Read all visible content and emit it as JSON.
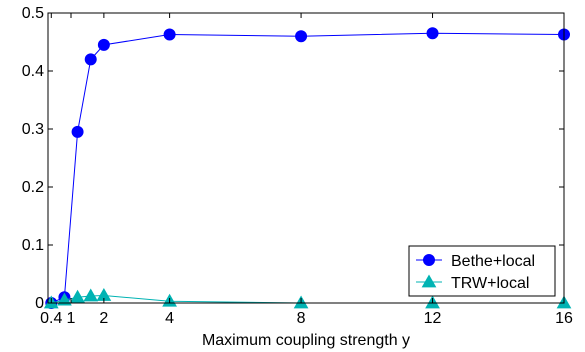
{
  "chart_data": {
    "type": "line",
    "title": "",
    "xlabel": "Maximum coupling strength y",
    "ylabel": "",
    "xlim": [
      0.3,
      16
    ],
    "ylim": [
      0,
      0.5
    ],
    "x_ticks": [
      0.4,
      1,
      2,
      4,
      8,
      12,
      16
    ],
    "x_tick_labels": [
      "0.4",
      "1",
      "2",
      "4",
      "8",
      "12",
      "16"
    ],
    "y_ticks": [
      0,
      0.1,
      0.2,
      0.3,
      0.4,
      0.5
    ],
    "y_tick_labels": [
      "0",
      "0.1",
      "0.2",
      "0.3",
      "0.4",
      "0.5"
    ],
    "grid": false,
    "legend_position": "bottom-right",
    "series": [
      {
        "name": "Bethe+local",
        "color": "#0000ff",
        "marker": "circle",
        "x": [
          0.4,
          0.8,
          1.2,
          1.6,
          2,
          4,
          8,
          12,
          16
        ],
        "y": [
          0.0,
          0.01,
          0.295,
          0.42,
          0.445,
          0.463,
          0.46,
          0.465,
          0.463
        ]
      },
      {
        "name": "TRW+local",
        "color": "#00b3b3",
        "marker": "triangle",
        "x": [
          0.4,
          0.8,
          1.2,
          1.6,
          2,
          4,
          8,
          12,
          16
        ],
        "y": [
          0.0,
          0.005,
          0.01,
          0.012,
          0.013,
          0.003,
          0.0,
          0.0,
          0.0
        ]
      }
    ]
  }
}
